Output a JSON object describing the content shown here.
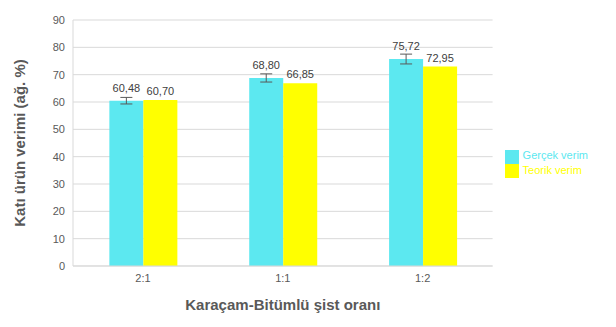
{
  "chart_data": {
    "type": "bar",
    "categories": [
      "2:1",
      "1:1",
      "1:2"
    ],
    "xlabel": "Karaçam-Bitümlü şist oranı",
    "ylabel": "Katı ürün verimi (ağ. %)",
    "ylim": [
      0,
      90
    ],
    "yticks": [
      0,
      10,
      20,
      30,
      40,
      50,
      60,
      70,
      80,
      90
    ],
    "grid": true,
    "legend": "right",
    "data_labels": true,
    "series": [
      {
        "name": "Gerçek verim",
        "color": "#5ce8f0",
        "values": [
          60.48,
          68.8,
          75.72
        ],
        "value_labels": [
          "60,48",
          "68,80",
          "75,72"
        ],
        "errors": [
          1.2,
          1.5,
          1.8
        ]
      },
      {
        "name": "Teorik verim",
        "color": "#ffff00",
        "values": [
          60.7,
          66.85,
          72.95
        ],
        "value_labels": [
          "60,70",
          "66,85",
          "72,95"
        ]
      }
    ]
  }
}
